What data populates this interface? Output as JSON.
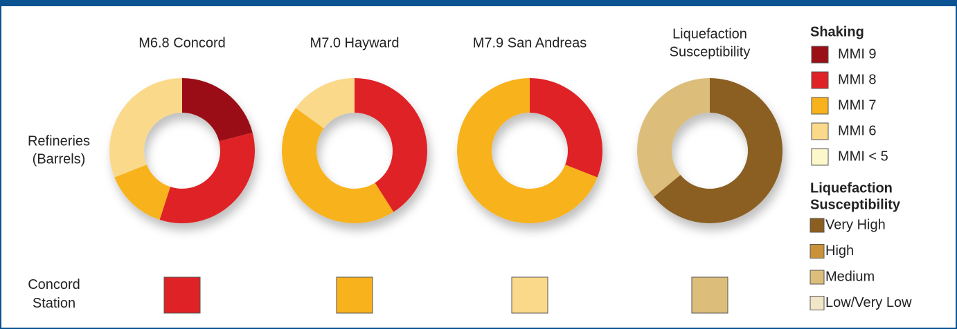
{
  "chart_data": [
    {
      "type": "donut",
      "title": [
        "M6.8 Concord"
      ],
      "segments": [
        {
          "value": 21,
          "color": "#9b1016"
        },
        {
          "value": 34,
          "color": "#df2226"
        },
        {
          "value": 14,
          "color": "#f8b21c"
        },
        {
          "value": 31,
          "color": "#fbd98a"
        }
      ]
    },
    {
      "type": "donut",
      "title": [
        "M7.0 Hayward"
      ],
      "segments": [
        {
          "value": 41,
          "color": "#df2226"
        },
        {
          "value": 44,
          "color": "#f8b21c"
        },
        {
          "value": 15,
          "color": "#fbd98a"
        }
      ]
    },
    {
      "type": "donut",
      "title": [
        "M7.9 San Andreas"
      ],
      "segments": [
        {
          "value": 31,
          "color": "#df2226"
        },
        {
          "value": 69,
          "color": "#f8b21c"
        }
      ]
    },
    {
      "type": "donut",
      "title": [
        "Liquefaction",
        "Susceptibility"
      ],
      "segments": [
        {
          "value": 64,
          "color": "#8b5e20"
        },
        {
          "value": 36,
          "color": "#dcbd7a"
        }
      ]
    }
  ],
  "row_labels": [
    [
      "Refineries",
      "(Barrels)"
    ],
    [
      "Concord",
      "Station"
    ]
  ],
  "station_colors": [
    "#df2226",
    "#f8b21c",
    "#fbd98a",
    "#dcbd7a"
  ],
  "legend": {
    "shaking": {
      "title": [
        "Shaking"
      ],
      "items": [
        {
          "label": "MMI 9",
          "color": "#9b1016"
        },
        {
          "label": "MMI 8",
          "color": "#df2226"
        },
        {
          "label": "MMI 7",
          "color": "#f8b21c"
        },
        {
          "label": "MMI 6",
          "color": "#fbd98a"
        },
        {
          "label": "MMI < 5",
          "color": "#fdf8cc"
        }
      ]
    },
    "liquefaction": {
      "title": [
        "Liquefaction",
        "Susceptibility"
      ],
      "items": [
        {
          "label": "Very High",
          "color": "#8b5e20"
        },
        {
          "label": "High",
          "color": "#c9923a"
        },
        {
          "label": "Medium",
          "color": "#dcbd7a"
        },
        {
          "label": "Low/Very Low",
          "color": "#f2e6c8"
        }
      ]
    }
  }
}
